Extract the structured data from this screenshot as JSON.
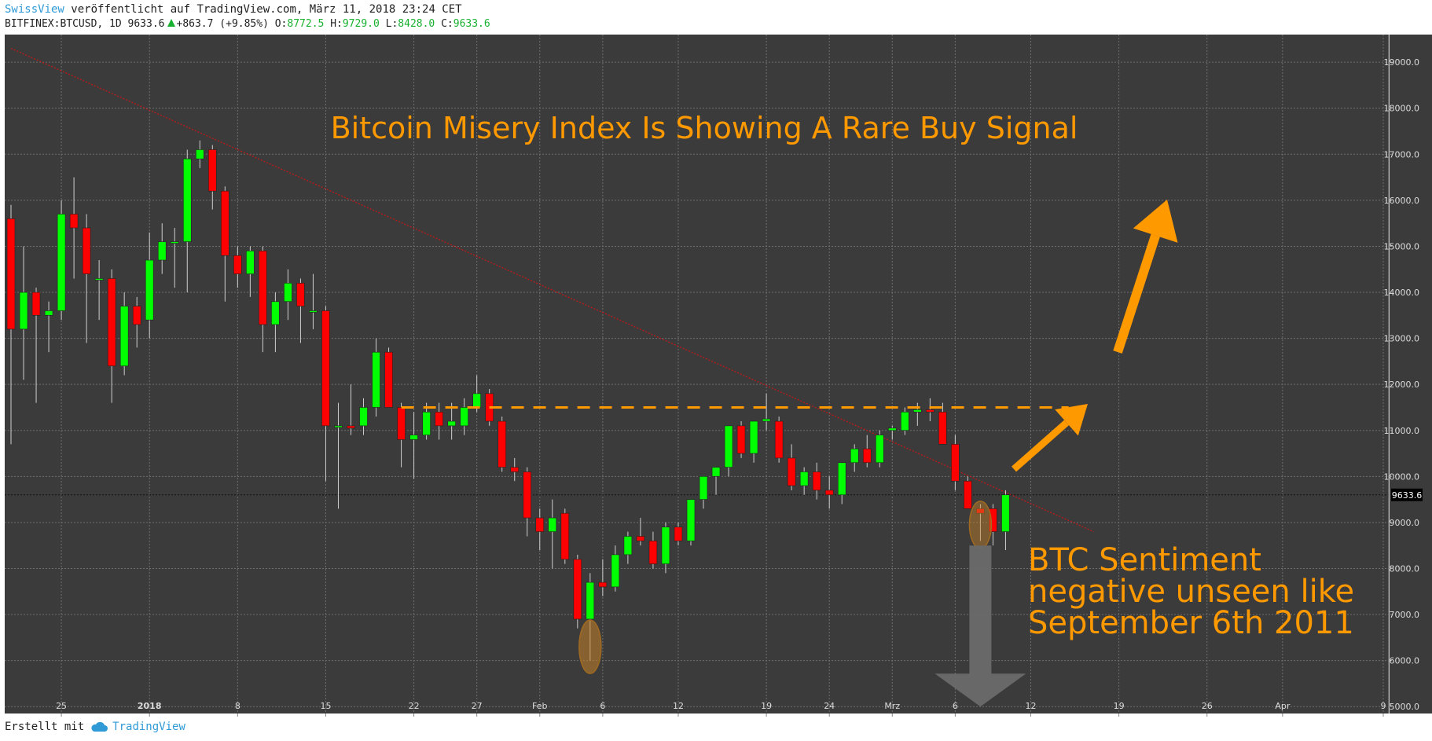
{
  "header": {
    "author": "SwissView",
    "published_text": "veröffentlicht auf TradingView.com, März 11, 2018 23:24 CET",
    "symbol_line": "BITFINEX:BTCUSD, 1D 9633.6",
    "change": "+863.7 (+9.85%)",
    "o_label": "O:",
    "o_value": "8772.5",
    "h_label": "H:",
    "h_value": "9729.0",
    "l_label": "L:",
    "l_value": "8428.0",
    "c_label": "C:",
    "c_value": "9633.6"
  },
  "footer": {
    "created_with": "Erstellt mit",
    "brand": "TradingView"
  },
  "colors": {
    "background": "#3b3b3b",
    "up": "#00ff00",
    "down": "#ff0000",
    "annotation": "#ff9900",
    "grid": "#6e6e6e",
    "arrow_grey": "#6a6a6a"
  },
  "chart_data": {
    "type": "candlestick",
    "title": "Bitcoin Misery Index Is Showing A Rare Buy Signal",
    "annotation": [
      "BTC Sentiment",
      "negative unseen like",
      "September 6th 2011"
    ],
    "last_price_label": "9633.6",
    "ylim": [
      4850,
      19600
    ],
    "y_ticks": [
      "5000.0",
      "6000.0",
      "7000.0",
      "8000.0",
      "9000.0",
      "10000.0",
      "11000.0",
      "12000.0",
      "13000.0",
      "14000.0",
      "15000.0",
      "16000.0",
      "17000.0",
      "18000.0",
      "19000.0"
    ],
    "y_tick_values": [
      5000,
      6000,
      7000,
      8000,
      9000,
      10000,
      11000,
      12000,
      13000,
      14000,
      15000,
      16000,
      17000,
      18000,
      19000
    ],
    "x_tick_labels": [
      {
        "label": "25",
        "date": "2017-12-25"
      },
      {
        "label": "2018",
        "date": "2018-01-01",
        "bold": true
      },
      {
        "label": "8",
        "date": "2018-01-08"
      },
      {
        "label": "15",
        "date": "2018-01-15"
      },
      {
        "label": "22",
        "date": "2018-01-22"
      },
      {
        "label": "27",
        "date": "2018-01-27"
      },
      {
        "label": "Feb",
        "date": "2018-02-01"
      },
      {
        "label": "6",
        "date": "2018-02-06"
      },
      {
        "label": "12",
        "date": "2018-02-12"
      },
      {
        "label": "19",
        "date": "2018-02-19"
      },
      {
        "label": "24",
        "date": "2018-02-24"
      },
      {
        "label": "Mrz",
        "date": "2018-03-01"
      },
      {
        "label": "6",
        "date": "2018-03-06"
      },
      {
        "label": "12",
        "date": "2018-03-12"
      },
      {
        "label": "19",
        "date": "2018-03-19"
      },
      {
        "label": "26",
        "date": "2018-03-26"
      },
      {
        "label": "Apr",
        "date": "2018-04-01"
      },
      {
        "label": "9",
        "date": "2018-04-09"
      }
    ],
    "x_range": [
      "2017-12-21",
      "2018-04-09"
    ],
    "resistance_level": 11500,
    "resistance_dates": [
      "2018-01-21",
      "2018-03-15"
    ],
    "trendline": [
      {
        "date": "2017-12-21",
        "price": 19300
      },
      {
        "date": "2018-03-17",
        "price": 8800
      }
    ],
    "candles": [
      {
        "date": "2017-12-21",
        "o": 15600,
        "h": 15900,
        "l": 10700,
        "c": 13200
      },
      {
        "date": "2017-12-22",
        "o": 13200,
        "h": 15000,
        "l": 12100,
        "c": 14000
      },
      {
        "date": "2017-12-23",
        "o": 14000,
        "h": 14100,
        "l": 11600,
        "c": 13500
      },
      {
        "date": "2017-12-24",
        "o": 13500,
        "h": 13800,
        "l": 12700,
        "c": 13600
      },
      {
        "date": "2017-12-25",
        "o": 13600,
        "h": 16000,
        "l": 13400,
        "c": 15700
      },
      {
        "date": "2017-12-26",
        "o": 15700,
        "h": 16500,
        "l": 14300,
        "c": 15400
      },
      {
        "date": "2017-12-27",
        "o": 15400,
        "h": 15700,
        "l": 12900,
        "c": 14400
      },
      {
        "date": "2017-12-28",
        "o": 14300,
        "h": 14700,
        "l": 13400,
        "c": 14300
      },
      {
        "date": "2017-12-29",
        "o": 14300,
        "h": 14500,
        "l": 11600,
        "c": 12400
      },
      {
        "date": "2017-12-30",
        "o": 12400,
        "h": 14000,
        "l": 12200,
        "c": 13700
      },
      {
        "date": "2017-12-31",
        "o": 13700,
        "h": 13900,
        "l": 12800,
        "c": 13300
      },
      {
        "date": "2018-01-01",
        "o": 13400,
        "h": 15300,
        "l": 13000,
        "c": 14700
      },
      {
        "date": "2018-01-02",
        "o": 14700,
        "h": 15500,
        "l": 14400,
        "c": 15100
      },
      {
        "date": "2018-01-03",
        "o": 15100,
        "h": 15400,
        "l": 14100,
        "c": 15100
      },
      {
        "date": "2018-01-04",
        "o": 15100,
        "h": 17100,
        "l": 14000,
        "c": 16900
      },
      {
        "date": "2018-01-05",
        "o": 16900,
        "h": 17300,
        "l": 16700,
        "c": 17100
      },
      {
        "date": "2018-01-06",
        "o": 17100,
        "h": 17200,
        "l": 15800,
        "c": 16200
      },
      {
        "date": "2018-01-07",
        "o": 16200,
        "h": 16300,
        "l": 13800,
        "c": 14800
      },
      {
        "date": "2018-01-08",
        "o": 14800,
        "h": 15000,
        "l": 14100,
        "c": 14400
      },
      {
        "date": "2018-01-09",
        "o": 14400,
        "h": 15000,
        "l": 13900,
        "c": 14900
      },
      {
        "date": "2018-01-10",
        "o": 14900,
        "h": 15000,
        "l": 12700,
        "c": 13300
      },
      {
        "date": "2018-01-11",
        "o": 13300,
        "h": 14000,
        "l": 12700,
        "c": 13800
      },
      {
        "date": "2018-01-12",
        "o": 13800,
        "h": 14500,
        "l": 13400,
        "c": 14200
      },
      {
        "date": "2018-01-13",
        "o": 14200,
        "h": 14300,
        "l": 12900,
        "c": 13700
      },
      {
        "date": "2018-01-14",
        "o": 13600,
        "h": 14400,
        "l": 13200,
        "c": 13600
      },
      {
        "date": "2018-01-15",
        "o": 13600,
        "h": 13700,
        "l": 9900,
        "c": 11100
      },
      {
        "date": "2018-01-16",
        "o": 11100,
        "h": 11600,
        "l": 9300,
        "c": 11100
      },
      {
        "date": "2018-01-17",
        "o": 11100,
        "h": 12000,
        "l": 10900,
        "c": 11050
      },
      {
        "date": "2018-01-18",
        "o": 11100,
        "h": 11700,
        "l": 10900,
        "c": 11500
      },
      {
        "date": "2018-01-19",
        "o": 11500,
        "h": 13000,
        "l": 11300,
        "c": 12700
      },
      {
        "date": "2018-01-20",
        "o": 12700,
        "h": 12800,
        "l": 11500,
        "c": 11500
      },
      {
        "date": "2018-01-21",
        "o": 11500,
        "h": 11600,
        "l": 10200,
        "c": 10800
      },
      {
        "date": "2018-01-22",
        "o": 10800,
        "h": 11400,
        "l": 9950,
        "c": 10900
      },
      {
        "date": "2018-01-23",
        "o": 10900,
        "h": 11600,
        "l": 10800,
        "c": 11400
      },
      {
        "date": "2018-01-24",
        "o": 11400,
        "h": 11600,
        "l": 10800,
        "c": 11100
      },
      {
        "date": "2018-01-25",
        "o": 11100,
        "h": 11600,
        "l": 10800,
        "c": 11200
      },
      {
        "date": "2018-01-26",
        "o": 11100,
        "h": 11700,
        "l": 10900,
        "c": 11500
      },
      {
        "date": "2018-01-27",
        "o": 11500,
        "h": 12200,
        "l": 11400,
        "c": 11800
      },
      {
        "date": "2018-01-28",
        "o": 11800,
        "h": 11900,
        "l": 11100,
        "c": 11200
      },
      {
        "date": "2018-01-29",
        "o": 11200,
        "h": 11300,
        "l": 10100,
        "c": 10200
      },
      {
        "date": "2018-01-30",
        "o": 10200,
        "h": 10400,
        "l": 9900,
        "c": 10100
      },
      {
        "date": "2018-01-31",
        "o": 10100,
        "h": 10200,
        "l": 8700,
        "c": 9100
      },
      {
        "date": "2018-02-01",
        "o": 9100,
        "h": 9300,
        "l": 8400,
        "c": 8800
      },
      {
        "date": "2018-02-02",
        "o": 8800,
        "h": 9500,
        "l": 8000,
        "c": 9100
      },
      {
        "date": "2018-02-03",
        "o": 9200,
        "h": 9300,
        "l": 8100,
        "c": 8200
      },
      {
        "date": "2018-02-04",
        "o": 8200,
        "h": 8300,
        "l": 6700,
        "c": 6900
      },
      {
        "date": "2018-02-05",
        "o": 6900,
        "h": 7900,
        "l": 6000,
        "c": 7700
      },
      {
        "date": "2018-02-06",
        "o": 7700,
        "h": 8200,
        "l": 7400,
        "c": 7600
      },
      {
        "date": "2018-02-07",
        "o": 7600,
        "h": 8500,
        "l": 7500,
        "c": 8300
      },
      {
        "date": "2018-02-08",
        "o": 8300,
        "h": 8800,
        "l": 8100,
        "c": 8700
      },
      {
        "date": "2018-02-09",
        "o": 8700,
        "h": 9100,
        "l": 8500,
        "c": 8600
      },
      {
        "date": "2018-02-10",
        "o": 8600,
        "h": 8800,
        "l": 8000,
        "c": 8100
      },
      {
        "date": "2018-02-11",
        "o": 8100,
        "h": 9000,
        "l": 7900,
        "c": 8900
      },
      {
        "date": "2018-02-12",
        "o": 8900,
        "h": 9000,
        "l": 8500,
        "c": 8600
      },
      {
        "date": "2018-02-13",
        "o": 8600,
        "h": 9500,
        "l": 8500,
        "c": 9500
      },
      {
        "date": "2018-02-14",
        "o": 9500,
        "h": 10000,
        "l": 9300,
        "c": 10000
      },
      {
        "date": "2018-02-15",
        "o": 10000,
        "h": 10200,
        "l": 9600,
        "c": 10200
      },
      {
        "date": "2018-02-16",
        "o": 10200,
        "h": 11100,
        "l": 10000,
        "c": 11100
      },
      {
        "date": "2018-02-17",
        "o": 11100,
        "h": 11200,
        "l": 10400,
        "c": 10500
      },
      {
        "date": "2018-02-18",
        "o": 10500,
        "h": 11100,
        "l": 10300,
        "c": 11200
      },
      {
        "date": "2018-02-19",
        "o": 11200,
        "h": 11800,
        "l": 11000,
        "c": 11250
      },
      {
        "date": "2018-02-20",
        "o": 11200,
        "h": 11300,
        "l": 10300,
        "c": 10400
      },
      {
        "date": "2018-02-21",
        "o": 10400,
        "h": 10700,
        "l": 9700,
        "c": 9800
      },
      {
        "date": "2018-02-22",
        "o": 9800,
        "h": 10200,
        "l": 9600,
        "c": 10100
      },
      {
        "date": "2018-02-23",
        "o": 10100,
        "h": 10300,
        "l": 9500,
        "c": 9700
      },
      {
        "date": "2018-02-24",
        "o": 9700,
        "h": 10000,
        "l": 9300,
        "c": 9600
      },
      {
        "date": "2018-02-25",
        "o": 9600,
        "h": 10300,
        "l": 9400,
        "c": 10300
      },
      {
        "date": "2018-02-26",
        "o": 10300,
        "h": 10700,
        "l": 10100,
        "c": 10600
      },
      {
        "date": "2018-02-27",
        "o": 10600,
        "h": 10900,
        "l": 10200,
        "c": 10300
      },
      {
        "date": "2018-02-28",
        "o": 10300,
        "h": 11000,
        "l": 10200,
        "c": 10900
      },
      {
        "date": "2018-03-01",
        "o": 11000,
        "h": 11100,
        "l": 10800,
        "c": 11050
      },
      {
        "date": "2018-03-02",
        "o": 11000,
        "h": 11500,
        "l": 10900,
        "c": 11400
      },
      {
        "date": "2018-03-03",
        "o": 11400,
        "h": 11600,
        "l": 11100,
        "c": 11450
      },
      {
        "date": "2018-03-04",
        "o": 11450,
        "h": 11700,
        "l": 11200,
        "c": 11400
      },
      {
        "date": "2018-03-05",
        "o": 11400,
        "h": 11600,
        "l": 10700,
        "c": 10700
      },
      {
        "date": "2018-03-06",
        "o": 10700,
        "h": 10900,
        "l": 9700,
        "c": 9900
      },
      {
        "date": "2018-03-07",
        "o": 9900,
        "h": 10000,
        "l": 9300,
        "c": 9300
      },
      {
        "date": "2018-03-08",
        "o": 9300,
        "h": 9400,
        "l": 8600,
        "c": 9200
      },
      {
        "date": "2018-03-09",
        "o": 9300,
        "h": 9400,
        "l": 8500,
        "c": 8800
      },
      {
        "date": "2018-03-10",
        "o": 8800,
        "h": 9700,
        "l": 8400,
        "c": 9600
      }
    ]
  }
}
